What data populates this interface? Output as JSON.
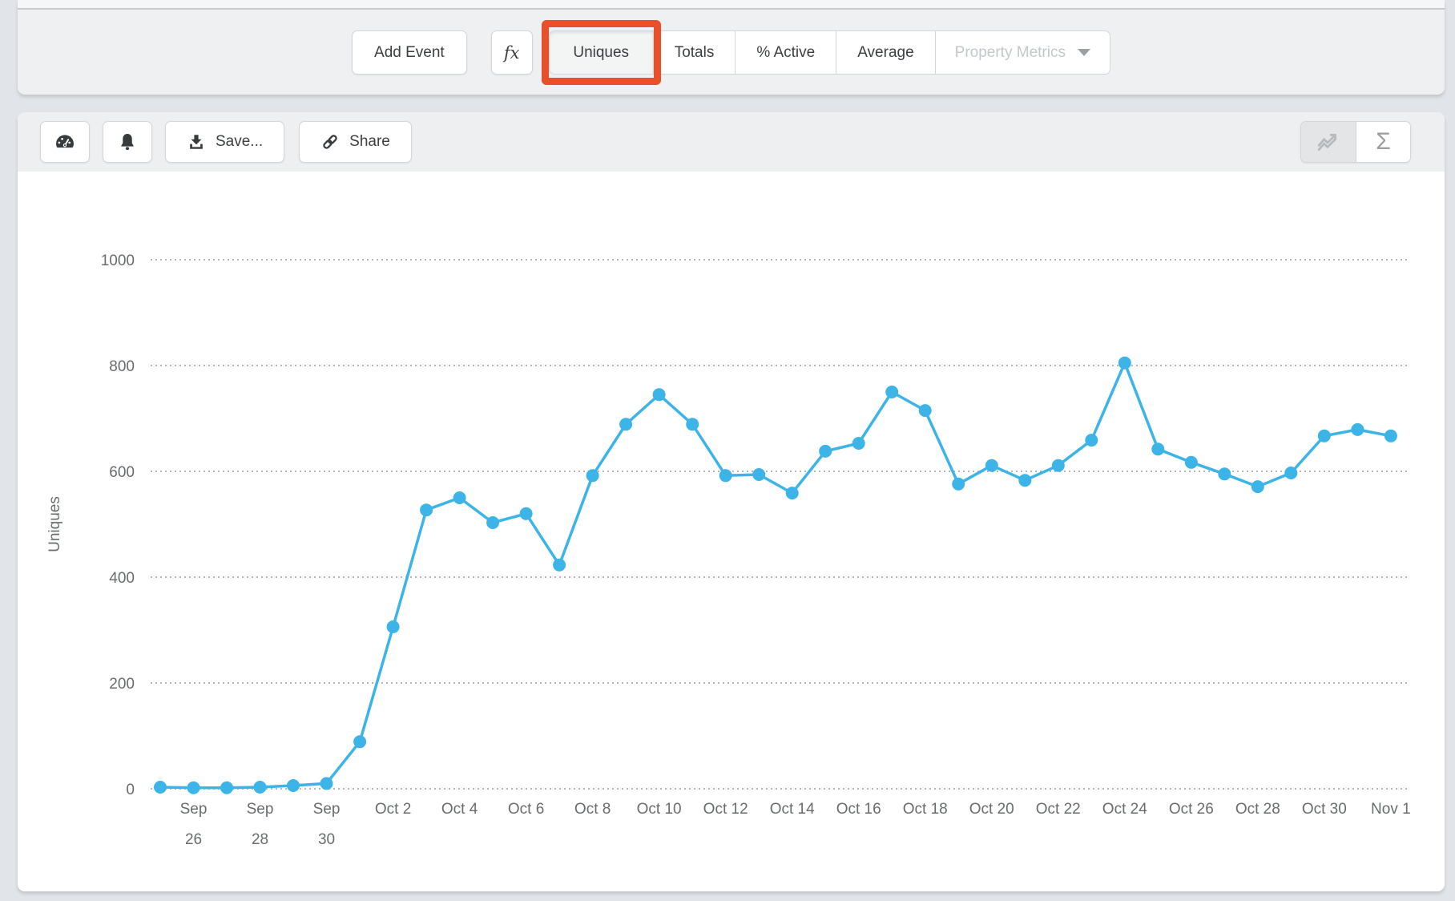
{
  "toolbar": {
    "add_event": "Add Event",
    "fx": "fx",
    "segments": [
      "Uniques",
      "Totals",
      "% Active",
      "Average"
    ],
    "active_segment": "Uniques",
    "property_metrics": "Property Metrics",
    "highlight_color": "#e8502c"
  },
  "chart_toolbar": {
    "icons": [
      "gauge-icon",
      "bell-icon",
      "download-icon",
      "link-icon",
      "line-chart-icon",
      "sigma-icon"
    ],
    "save": "Save...",
    "share": "Share",
    "sigma": "Σ",
    "active_view": "line-chart"
  },
  "chart_data": {
    "type": "line",
    "title": "",
    "xlabel": "",
    "ylabel": "Uniques",
    "ylim": [
      0,
      1000
    ],
    "yticks": [
      0,
      200,
      400,
      600,
      800,
      1000
    ],
    "grid": "dotted-horizontal",
    "legend": "none",
    "series_color": "#3cb4e8",
    "x_labels_every": 2,
    "x": [
      "Sep 25",
      "Sep 26",
      "Sep 27",
      "Sep 28",
      "Sep 29",
      "Sep 30",
      "Oct 1",
      "Oct 2",
      "Oct 3",
      "Oct 4",
      "Oct 5",
      "Oct 6",
      "Oct 7",
      "Oct 8",
      "Oct 9",
      "Oct 10",
      "Oct 11",
      "Oct 12",
      "Oct 13",
      "Oct 14",
      "Oct 15",
      "Oct 16",
      "Oct 17",
      "Oct 18",
      "Oct 19",
      "Oct 20",
      "Oct 21",
      "Oct 22",
      "Oct 23",
      "Oct 24",
      "Oct 25",
      "Oct 26",
      "Oct 27",
      "Oct 28",
      "Oct 29",
      "Oct 30",
      "Oct 31",
      "Nov 1"
    ],
    "values": [
      3,
      2,
      2,
      3,
      6,
      10,
      89,
      306,
      527,
      550,
      503,
      520,
      423,
      592,
      689,
      745,
      689,
      592,
      594,
      559,
      638,
      653,
      750,
      715,
      576,
      611,
      583,
      611,
      659,
      805,
      642,
      617,
      595,
      571,
      597,
      667,
      679,
      667
    ]
  }
}
